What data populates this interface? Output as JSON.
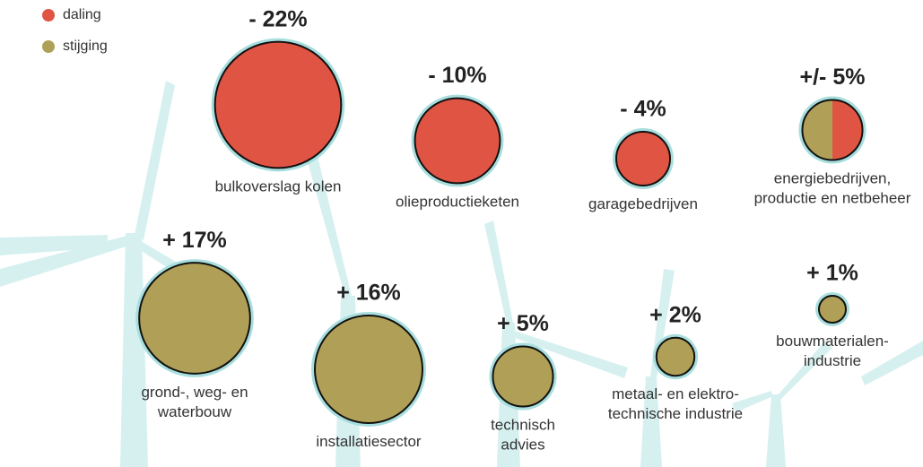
{
  "chart_data": {
    "type": "bubble",
    "categories": [
      "bulkoverslag kolen",
      "olieproductieketen",
      "garagebedrijven",
      "energiebedrijven,\nproductie en netbeheer",
      "grond-, weg- en\nwaterbouw",
      "installatiesector",
      "technisch\nadvies",
      "metaal- en elektro-\ntechnische industrie",
      "bouwmaterialen-\nindustrie"
    ],
    "value_labels": [
      "- 22%",
      "- 10%",
      "- 4%",
      "+/- 5%",
      "+ 17%",
      "+ 16%",
      "+ 5%",
      "+ 2%",
      "+ 1%"
    ],
    "series": [
      {
        "name": "daling",
        "color": "#e05444",
        "values": [
          -22,
          -10,
          -4,
          -5,
          null,
          null,
          null,
          null,
          null
        ]
      },
      {
        "name": "stijging",
        "color": "#b0a057",
        "values": [
          null,
          null,
          null,
          5,
          17,
          16,
          5,
          2,
          1
        ]
      }
    ]
  }
}
